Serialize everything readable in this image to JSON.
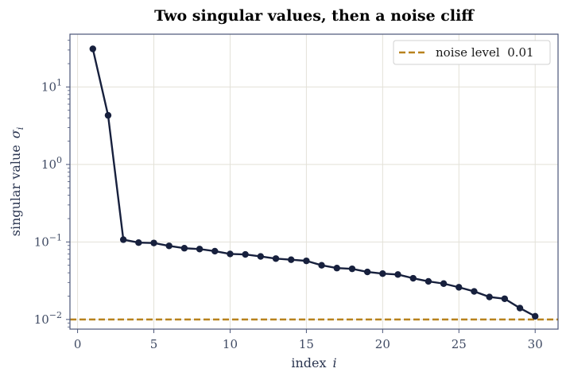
{
  "chart_data": {
    "type": "line",
    "title": "Two singular values, then a noise cliff",
    "xlabel_text": "index",
    "xlabel_var": "i",
    "ylabel_text": "singular value",
    "ylabel_var": "σ",
    "ylabel_sub": "i",
    "yscale": "log",
    "xlim": [
      -0.5,
      31.5
    ],
    "ylim": [
      0.0075,
      48
    ],
    "x_ticks": [
      0,
      5,
      10,
      15,
      20,
      25,
      30
    ],
    "y_ticks": [
      {
        "value": 0.01,
        "base": "10",
        "exp": "−2"
      },
      {
        "value": 0.1,
        "base": "10",
        "exp": "−1"
      },
      {
        "value": 1,
        "base": "10",
        "exp": "0"
      },
      {
        "value": 10,
        "base": "10",
        "exp": "1"
      }
    ],
    "grid": true,
    "legend_position": "top-right",
    "series": [
      {
        "name": "",
        "color": "#17203d",
        "x": [
          1,
          2,
          3,
          4,
          5,
          6,
          7,
          8,
          9,
          10,
          11,
          12,
          13,
          14,
          15,
          16,
          17,
          18,
          19,
          20,
          21,
          22,
          23,
          24,
          25,
          26,
          27,
          28,
          29,
          30
        ],
        "y": [
          31,
          4.3,
          0.107,
          0.098,
          0.097,
          0.089,
          0.083,
          0.081,
          0.076,
          0.07,
          0.069,
          0.065,
          0.061,
          0.059,
          0.057,
          0.05,
          0.046,
          0.045,
          0.041,
          0.039,
          0.038,
          0.034,
          0.031,
          0.029,
          0.026,
          0.023,
          0.0195,
          0.0185,
          0.014,
          0.011
        ]
      }
    ],
    "reference_line": {
      "label": "noise level  0.01",
      "value": 0.01,
      "color": "#b8821e"
    }
  }
}
